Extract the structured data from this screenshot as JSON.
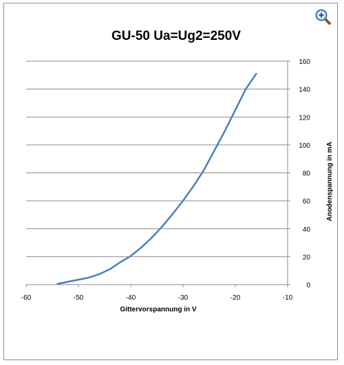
{
  "chart_data": {
    "type": "line",
    "title": "GU-50 Ua=Ug2=250V",
    "xlabel": "Gittervorspannung in V",
    "ylabel": "Anodenspannung in mA",
    "xlim": [
      -60,
      -10
    ],
    "ylim": [
      0,
      160
    ],
    "xticks": [
      -60,
      -50,
      -40,
      -30,
      -20,
      -10
    ],
    "yticks": [
      0,
      20,
      40,
      60,
      80,
      100,
      120,
      140,
      160
    ],
    "grid": "horizontal",
    "legend": "none",
    "y_axis_position": "right",
    "series": [
      {
        "color": "#4a7ebb",
        "x": [
          -54,
          -52,
          -50,
          -48,
          -46,
          -44,
          -42,
          -40,
          -38,
          -36,
          -34,
          -32,
          -30,
          -28,
          -26,
          -24,
          -22,
          -20,
          -18,
          -16
        ],
        "y": [
          0.5,
          2,
          3.5,
          5,
          7.5,
          11,
          16,
          20.5,
          26.5,
          33.5,
          41.5,
          50.5,
          60,
          70.5,
          82,
          96,
          110,
          125,
          140,
          151
        ]
      }
    ]
  },
  "ui": {
    "zoom_icon": "magnifier-plus-icon"
  }
}
